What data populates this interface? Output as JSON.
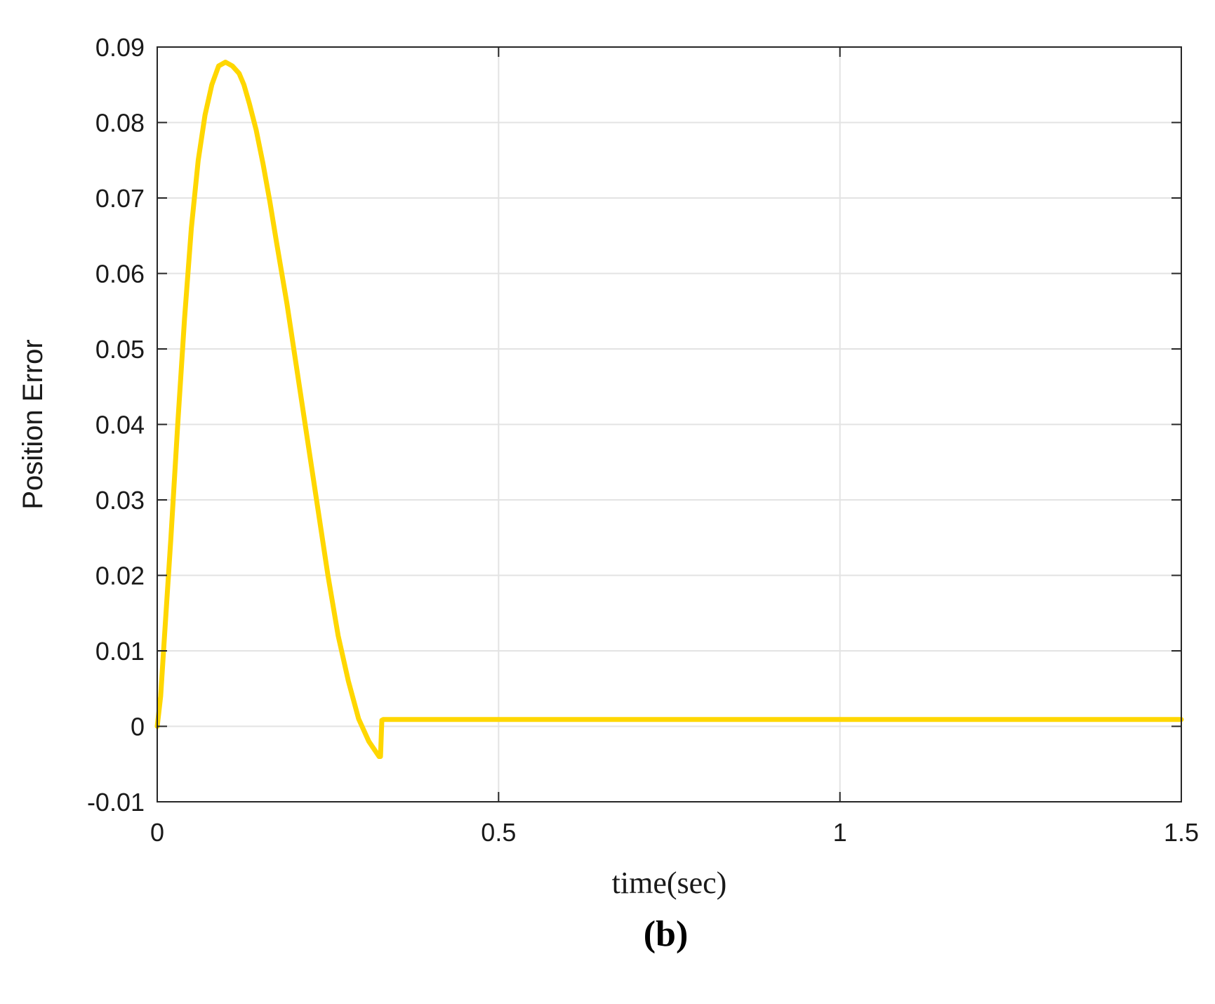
{
  "chart_data": {
    "type": "line",
    "xlabel": "time(sec)",
    "ylabel": "Position Error",
    "xlim": [
      0,
      1.5
    ],
    "ylim": [
      -0.01,
      0.09
    ],
    "xticks": [
      0,
      0.5,
      1,
      1.5
    ],
    "xtick_labels": [
      "0",
      "0.5",
      "1",
      "1.5"
    ],
    "yticks": [
      -0.01,
      0,
      0.01,
      0.02,
      0.03,
      0.04,
      0.05,
      0.06,
      0.07,
      0.08,
      0.09
    ],
    "ytick_labels": [
      "-0.01",
      "0",
      "0.01",
      "0.02",
      "0.03",
      "0.04",
      "0.05",
      "0.06",
      "0.07",
      "0.08",
      "0.09"
    ],
    "grid": true,
    "series": [
      {
        "color": "#FFD700",
        "x": [
          0,
          0.005,
          0.01,
          0.02,
          0.03,
          0.04,
          0.05,
          0.06,
          0.07,
          0.08,
          0.09,
          0.1,
          0.11,
          0.12,
          0.127,
          0.135,
          0.145,
          0.155,
          0.165,
          0.175,
          0.19,
          0.205,
          0.22,
          0.235,
          0.25,
          0.265,
          0.28,
          0.295,
          0.31,
          0.325,
          0.327,
          0.329,
          0.331,
          0.34,
          0.5,
          0.75,
          1.0,
          1.25,
          1.5
        ],
        "y": [
          0.0,
          0.004,
          0.011,
          0.025,
          0.04,
          0.054,
          0.066,
          0.075,
          0.081,
          0.085,
          0.0875,
          0.088,
          0.0875,
          0.0865,
          0.085,
          0.0825,
          0.079,
          0.0745,
          0.0695,
          0.064,
          0.056,
          0.047,
          0.038,
          0.029,
          0.02,
          0.012,
          0.006,
          0.001,
          -0.002,
          -0.004,
          -0.004,
          0.0008,
          0.0009,
          0.0009,
          0.0009,
          0.0009,
          0.0009,
          0.0009,
          0.0009
        ]
      }
    ]
  },
  "panel_label": "(b)"
}
